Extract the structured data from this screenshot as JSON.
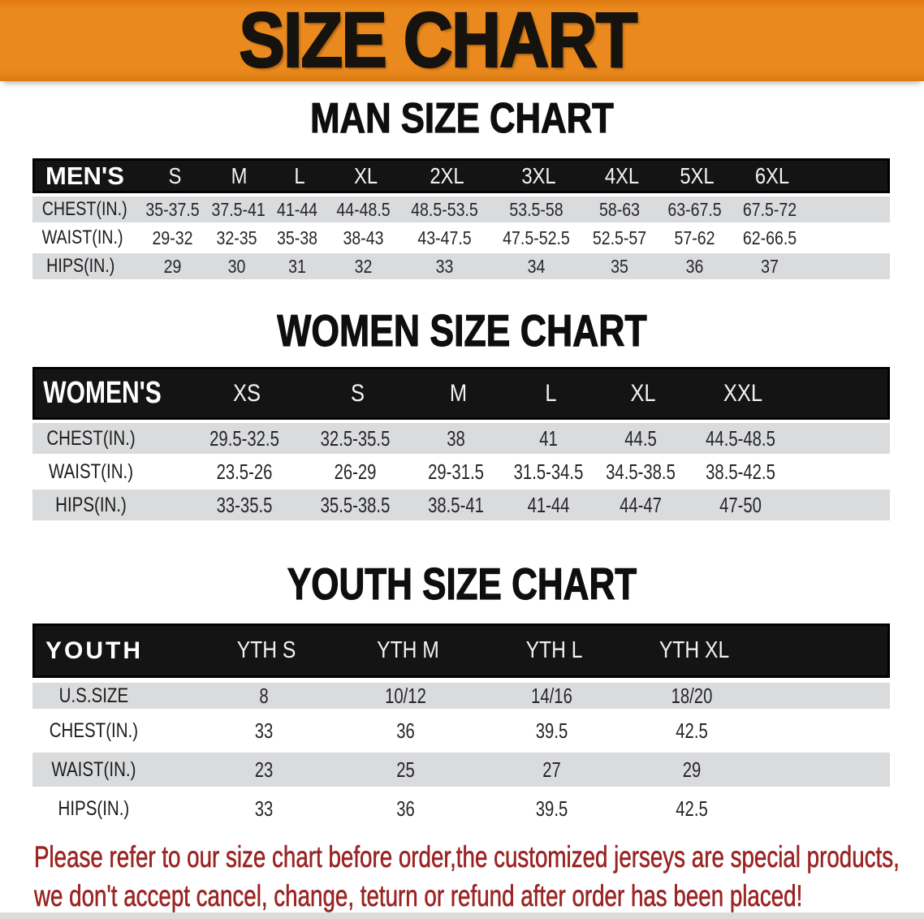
{
  "banner": {
    "title": "SIZE CHART",
    "bg_color": "#EA8A1E"
  },
  "mens": {
    "title": "MAN SIZE CHART",
    "header": [
      "MEN'S",
      "S",
      "M",
      "L",
      "XL",
      "2XL",
      "3XL",
      "4XL",
      "5XL",
      "6XL"
    ],
    "rows": [
      {
        "label": "CHEST(IN.)",
        "values": [
          "35-37.5",
          "37.5-41",
          "41-44",
          "44-48.5",
          "48.5-53.5",
          "53.5-58",
          "58-63",
          "63-67.5",
          "67.5-72"
        ]
      },
      {
        "label": "WAIST(IN.)",
        "values": [
          "29-32",
          "32-35",
          "35-38",
          "38-43",
          "43-47.5",
          "47.5-52.5",
          "52.5-57",
          "57-62",
          "62-66.5"
        ]
      },
      {
        "label": "HIPS(IN.)",
        "values": [
          "29",
          "30",
          "31",
          "32",
          "33",
          "34",
          "35",
          "36",
          "37"
        ]
      }
    ]
  },
  "womens": {
    "title": "WOMEN SIZE CHART",
    "header": [
      "WOMEN'S",
      "XS",
      "S",
      "M",
      "L",
      "XL",
      "XXL"
    ],
    "rows": [
      {
        "label": "CHEST(IN.)",
        "values": [
          "29.5-32.5",
          "32.5-35.5",
          "38",
          "41",
          "44.5",
          "44.5-48.5"
        ]
      },
      {
        "label": "WAIST(IN.)",
        "values": [
          "23.5-26",
          "26-29",
          "29-31.5",
          "31.5-34.5",
          "34.5-38.5",
          "38.5-42.5"
        ]
      },
      {
        "label": "HIPS(IN.)",
        "values": [
          "33-35.5",
          "35.5-38.5",
          "38.5-41",
          "41-44",
          "44-47",
          "47-50"
        ]
      }
    ]
  },
  "youth": {
    "title": "YOUTH SIZE CHART",
    "header": [
      "YOUTH",
      "YTH S",
      "YTH M",
      "YTH L",
      "YTH XL"
    ],
    "rows": [
      {
        "label": "U.S.SIZE",
        "values": [
          "8",
          "10/12",
          "14/16",
          "18/20"
        ]
      },
      {
        "label": "CHEST(IN.)",
        "values": [
          "33",
          "36",
          "39.5",
          "42.5"
        ]
      },
      {
        "label": "WAIST(IN.)",
        "values": [
          "23",
          "25",
          "27",
          "29"
        ]
      },
      {
        "label": "HIPS(IN.)",
        "values": [
          "33",
          "36",
          "39.5",
          "42.5"
        ]
      }
    ]
  },
  "footnote": {
    "line1": "Please refer to our size chart before order,the customized jerseys are special products,",
    "line2": "we don't accept cancel, change, teturn or refund after order has been placed!",
    "color": "#9A2423"
  }
}
